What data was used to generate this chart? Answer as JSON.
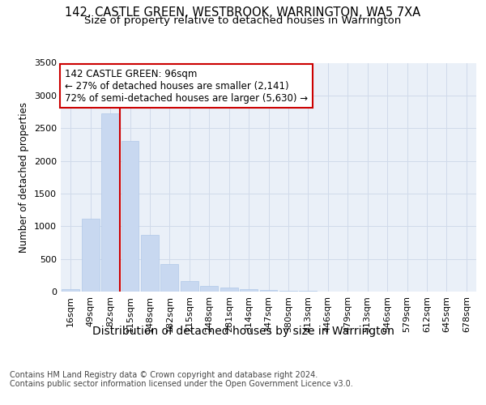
{
  "title1": "142, CASTLE GREEN, WESTBROOK, WARRINGTON, WA5 7XA",
  "title2": "Size of property relative to detached houses in Warrington",
  "xlabel": "Distribution of detached houses by size in Warrington",
  "ylabel": "Number of detached properties",
  "categories": [
    "16sqm",
    "49sqm",
    "82sqm",
    "115sqm",
    "148sqm",
    "182sqm",
    "215sqm",
    "248sqm",
    "281sqm",
    "314sqm",
    "347sqm",
    "380sqm",
    "413sqm",
    "446sqm",
    "479sqm",
    "513sqm",
    "546sqm",
    "579sqm",
    "612sqm",
    "645sqm",
    "678sqm"
  ],
  "values": [
    40,
    1110,
    2720,
    2300,
    870,
    420,
    160,
    90,
    60,
    40,
    25,
    15,
    10,
    5,
    3,
    2,
    1,
    1,
    0,
    0,
    0
  ],
  "bar_color": "#c8d8f0",
  "bar_edge_color": "#b0c8e8",
  "grid_color": "#d0daea",
  "background_color": "#eaf0f8",
  "annotation_line1": "142 CASTLE GREEN: 96sqm",
  "annotation_line2": "← 27% of detached houses are smaller (2,141)",
  "annotation_line3": "72% of semi-detached houses are larger (5,630) →",
  "annotation_box_color": "#ffffff",
  "annotation_box_edge_color": "#cc0000",
  "vline_x": 2.5,
  "vline_color": "#cc0000",
  "ylim": [
    0,
    3500
  ],
  "yticks": [
    0,
    500,
    1000,
    1500,
    2000,
    2500,
    3000,
    3500
  ],
  "footer_line1": "Contains HM Land Registry data © Crown copyright and database right 2024.",
  "footer_line2": "Contains public sector information licensed under the Open Government Licence v3.0.",
  "title1_fontsize": 10.5,
  "title2_fontsize": 9.5,
  "xlabel_fontsize": 10,
  "ylabel_fontsize": 8.5,
  "tick_fontsize": 8,
  "annotation_fontsize": 8.5,
  "footer_fontsize": 7
}
